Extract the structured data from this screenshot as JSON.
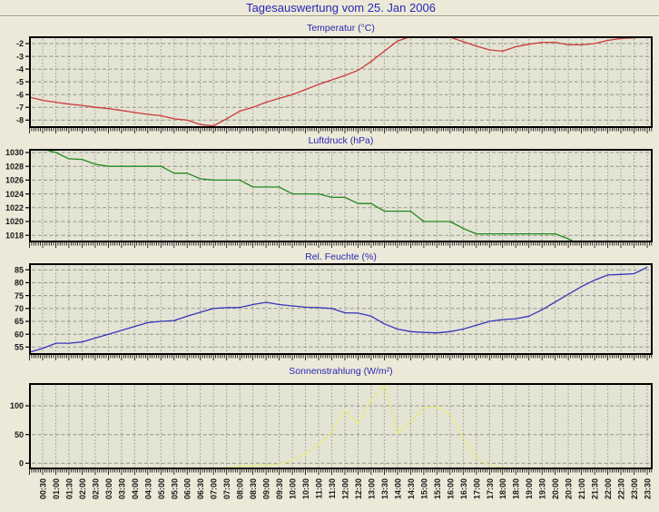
{
  "page": {
    "title": "Tagesauswertung vom 25. Jan 2006",
    "title_color": "#2828b4",
    "background_color": "#ece9d9",
    "plot_background_color": "#e4e4d5",
    "grid_color": "#93938a",
    "axis_color": "#000000",
    "tick_label_color": "#1a1a1a"
  },
  "axis": {
    "x_start": "00:00",
    "x_step_minutes": 30,
    "x_tick_labels": [
      "00:30",
      "01:00",
      "01:30",
      "02:00",
      "02:30",
      "03:00",
      "03:30",
      "04:00",
      "04:30",
      "05:00",
      "05:30",
      "06:00",
      "06:30",
      "07:00",
      "07:30",
      "08:00",
      "08:30",
      "09:00",
      "09:30",
      "10:00",
      "10:30",
      "11:00",
      "11:30",
      "12:00",
      "12:30",
      "13:00",
      "13:30",
      "14:00",
      "14:30",
      "15:00",
      "15:30",
      "16:00",
      "16:30",
      "17:00",
      "17:30",
      "18:00",
      "18:30",
      "19:00",
      "19:30",
      "20:00",
      "20:30",
      "21:00",
      "21:30",
      "22:00",
      "22:30",
      "23:00",
      "23:30"
    ],
    "x_times": [
      "00:00",
      "00:30",
      "01:00",
      "01:30",
      "02:00",
      "02:30",
      "03:00",
      "03:30",
      "04:00",
      "04:30",
      "05:00",
      "05:30",
      "06:00",
      "06:30",
      "07:00",
      "07:30",
      "08:00",
      "08:30",
      "09:00",
      "09:30",
      "10:00",
      "10:30",
      "11:00",
      "11:30",
      "12:00",
      "12:30",
      "13:00",
      "13:30",
      "14:00",
      "14:30",
      "15:00",
      "15:30",
      "16:00",
      "16:30",
      "17:00",
      "17:30",
      "18:00",
      "18:30",
      "19:00",
      "19:30",
      "20:00",
      "20:30",
      "21:00",
      "21:30",
      "22:00",
      "22:30",
      "23:00",
      "23:30"
    ]
  },
  "chart_data": [
    {
      "type": "line",
      "slug": "temperatur",
      "title": "Temperatur (°C)",
      "unit": "°C",
      "color": "#cc3939",
      "grid": true,
      "yticks": [
        -2,
        -3,
        -4,
        -5,
        -6,
        -7,
        -8
      ],
      "ylim": [
        -8.55,
        -1.5
      ],
      "values": [
        -6.2,
        -6.45,
        -6.6,
        -6.75,
        -6.85,
        -7.0,
        -7.1,
        -7.25,
        -7.4,
        -7.55,
        -7.65,
        -7.9,
        -8.0,
        -8.35,
        -8.45,
        -7.9,
        -7.3,
        -7.0,
        -6.6,
        -6.3,
        -6.0,
        -5.6,
        -5.2,
        -4.85,
        -4.5,
        -4.1,
        -3.4,
        -2.6,
        -1.8,
        -1.45,
        -1.4,
        -1.4,
        -1.5,
        -1.85,
        -2.2,
        -2.5,
        -2.6,
        -2.25,
        -2.05,
        -1.9,
        -1.9,
        -2.1,
        -2.1,
        -2.0,
        -1.75,
        -1.6,
        -1.55,
        -1.45
      ]
    },
    {
      "type": "line",
      "slug": "luftdruck",
      "title": "Luftdruck (hPa)",
      "unit": "hPa",
      "color": "#1f8a1f",
      "grid": true,
      "yticks": [
        1030,
        1028,
        1026,
        1024,
        1022,
        1020,
        1018
      ],
      "ylim": [
        1017.1,
        1030.4
      ],
      "values": [
        1031,
        1030.5,
        1030,
        1029.1,
        1029,
        1028.3,
        1028,
        1028,
        1028,
        1028,
        1028,
        1027,
        1027,
        1026.2,
        1026,
        1026,
        1026,
        1025,
        1025,
        1025,
        1024,
        1024,
        1024,
        1023.5,
        1023.5,
        1022.6,
        1022.6,
        1021.5,
        1021.5,
        1021.5,
        1020,
        1020,
        1020,
        1019,
        1018.2,
        1018.2,
        1018.2,
        1018.2,
        1018.2,
        1018.2,
        1018.2,
        1017.5,
        1016.5,
        1016.5,
        1016.5,
        1016.5,
        1016.5,
        1016.5
      ]
    },
    {
      "type": "line",
      "slug": "rel-feuchte",
      "title": "Rel. Feuchte (%)",
      "unit": "%",
      "color": "#3535bb",
      "grid": true,
      "yticks": [
        85,
        80,
        75,
        70,
        65,
        60,
        55
      ],
      "ylim": [
        52.3,
        87.2
      ],
      "values": [
        53,
        54.5,
        56.5,
        56.5,
        57,
        58.5,
        60,
        61.5,
        63,
        64.5,
        65,
        65.3,
        67,
        68.5,
        70,
        70.3,
        70.4,
        71.5,
        72.4,
        71.5,
        71,
        70.5,
        70.3,
        70,
        68.3,
        68.2,
        67,
        64,
        62,
        61,
        60.7,
        60.5,
        61,
        62,
        63.5,
        65,
        65.7,
        66,
        67,
        69.5,
        72.5,
        75.5,
        78.5,
        81,
        83,
        83.2,
        83.5,
        86
      ]
    },
    {
      "type": "line",
      "slug": "sonnenstrahlung",
      "title": "Sonnenstrahlung (W/m²)",
      "unit": "W/m²",
      "color": "#e8e882",
      "grid": true,
      "yticks": [
        100,
        50,
        0
      ],
      "ylim": [
        -9,
        138
      ],
      "values": [
        -8,
        -8,
        -8,
        -8,
        -8,
        -8,
        -8,
        -8,
        -8,
        -8,
        -8,
        -8,
        -8,
        -8,
        -8,
        -8,
        -5,
        -4.5,
        -4,
        -1.5,
        5,
        16,
        33,
        55,
        93,
        68,
        110,
        135,
        52,
        72,
        97,
        98,
        85,
        44,
        9,
        -3,
        -8,
        -8,
        -8,
        -8,
        -8,
        -8,
        -8,
        -8,
        -8,
        -8,
        -8,
        -8
      ]
    }
  ]
}
